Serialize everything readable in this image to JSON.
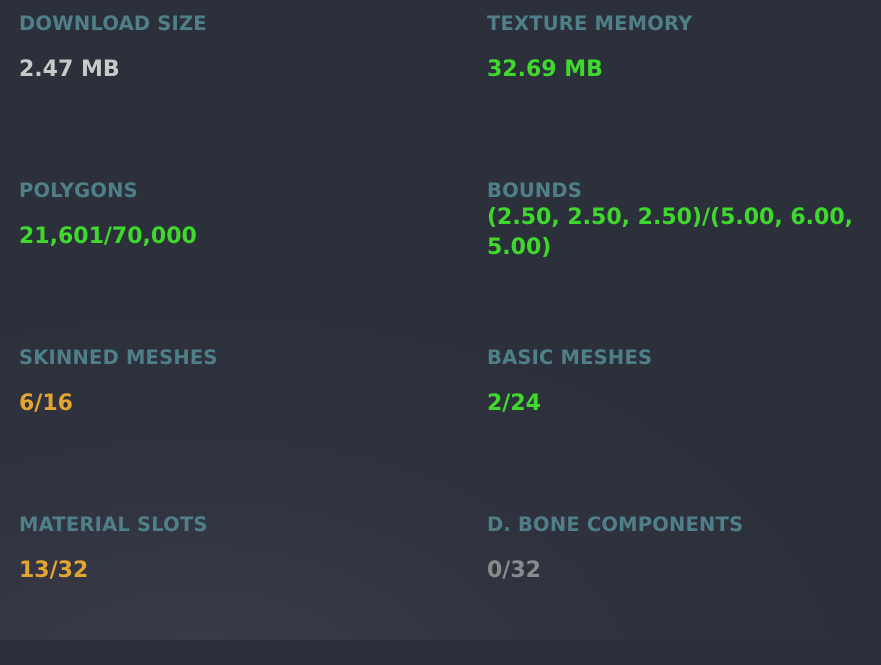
{
  "stats": [
    {
      "label": "DOWNLOAD SIZE",
      "value": "2.47 MB",
      "color": "#c9c9c9"
    },
    {
      "label": "TEXTURE MEMORY",
      "value": "32.69 MB",
      "color": "#3fd92d"
    },
    {
      "label": "POLYGONS",
      "value": "21,601/70,000",
      "color": "#3fd92d"
    },
    {
      "label": "BOUNDS",
      "value": "(2.50, 2.50, 2.50)/(5.00, 6.00, 5.00)",
      "color": "#3fd92d"
    },
    {
      "label": "SKINNED MESHES",
      "value": "6/16",
      "color": "#e2a530"
    },
    {
      "label": "BASIC MESHES",
      "value": "2/24",
      "color": "#3fd92d"
    },
    {
      "label": "MATERIAL SLOTS",
      "value": "13/32",
      "color": "#e2a530"
    },
    {
      "label": "D. BONE COMPONENTS",
      "value": "0/32",
      "color": "#8a8a8c"
    }
  ]
}
